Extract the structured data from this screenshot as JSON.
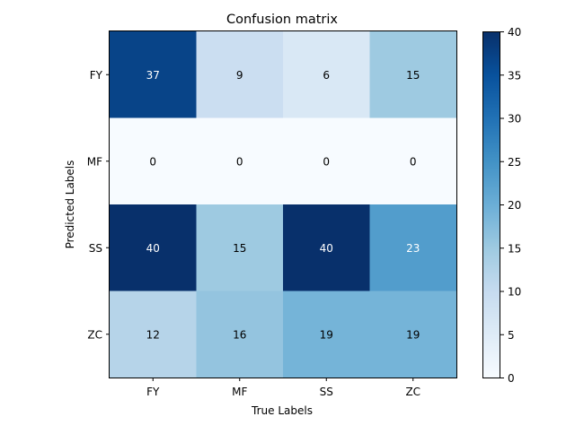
{
  "chart_data": {
    "type": "heatmap",
    "title": "Confusion matrix",
    "xlabel": "True Labels",
    "ylabel": "Predicted Labels",
    "x_categories": [
      "FY",
      "MF",
      "SS",
      "ZC"
    ],
    "y_categories": [
      "FY",
      "MF",
      "SS",
      "ZC"
    ],
    "values": [
      [
        37,
        9,
        6,
        15
      ],
      [
        0,
        0,
        0,
        0
      ],
      [
        40,
        15,
        40,
        23
      ],
      [
        12,
        16,
        19,
        19
      ]
    ],
    "colormap": "Blues",
    "vmin": 0,
    "vmax": 40,
    "colorbar_ticks": [
      0,
      5,
      10,
      15,
      20,
      25,
      30,
      35,
      40
    ],
    "text_color_light": "#ffffff",
    "text_color_dark": "#000000",
    "grid": false
  }
}
